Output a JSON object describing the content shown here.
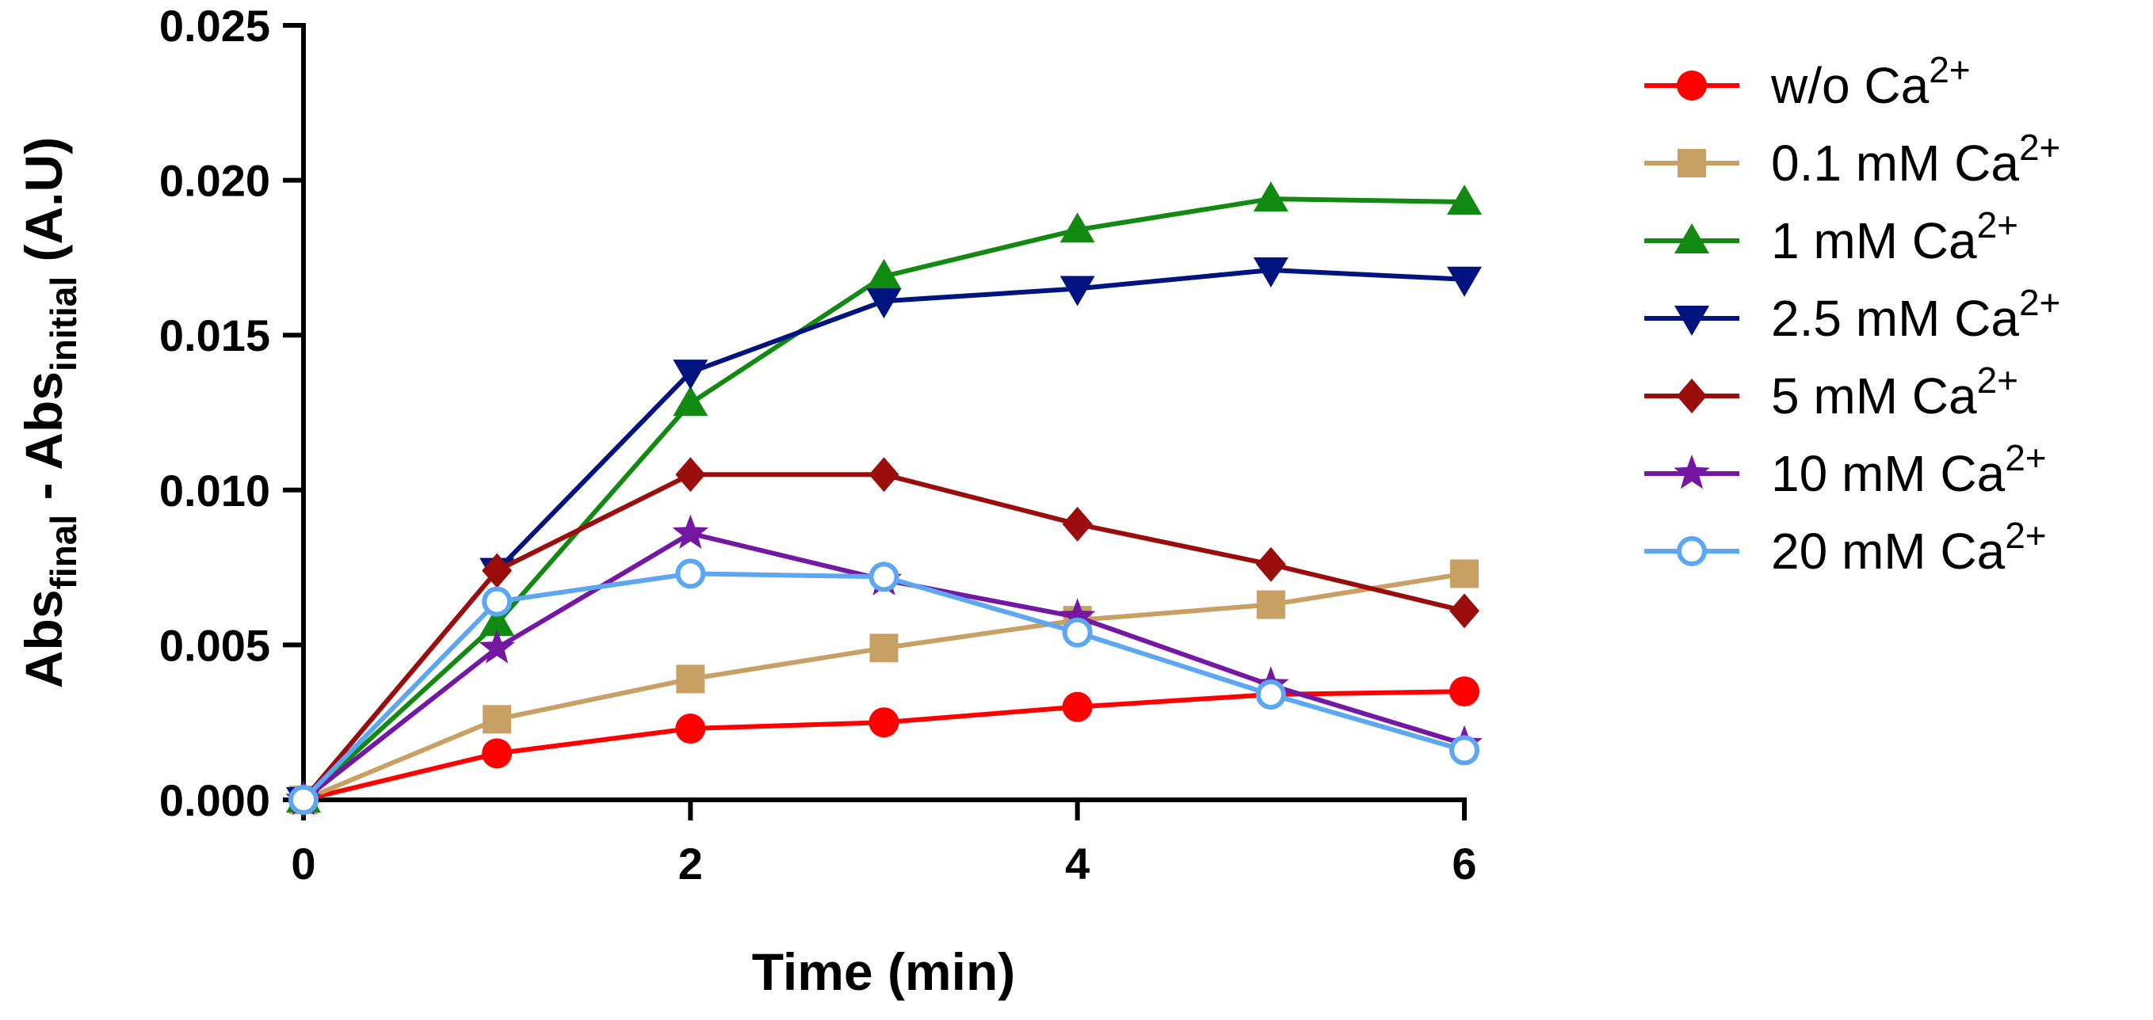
{
  "chart_data": {
    "type": "line",
    "title": "",
    "xlabel": "Time (min)",
    "ylabel": {
      "base1": "Abs",
      "sub1": "final",
      "sep": " - ",
      "base2": "Abs",
      "sub2": "initial",
      "unit": " (A.U)"
    },
    "xlim": [
      0,
      6
    ],
    "ylim": [
      0,
      0.025
    ],
    "xticks": [
      0,
      2,
      4,
      6
    ],
    "xtick_labels": [
      "0",
      "2",
      "4",
      "6"
    ],
    "yticks": [
      0,
      0.005,
      0.01,
      0.015,
      0.02,
      0.025
    ],
    "ytick_labels": [
      "0.000",
      "0.005",
      "0.010",
      "0.015",
      "0.020",
      "0.025"
    ],
    "grid": false,
    "legend_position": "right",
    "x": [
      0,
      1,
      2,
      3,
      4,
      5,
      6
    ],
    "series": [
      {
        "name": "w/o Ca",
        "label_main": "w/o Ca",
        "label_sup": "2+",
        "color": "#ff0000",
        "marker": "circle",
        "values": [
          0.0,
          0.0015,
          0.0023,
          0.0025,
          0.003,
          0.0034,
          0.0035
        ]
      },
      {
        "name": "0.1 mM Ca",
        "label_main": "0.1 mM Ca",
        "label_sup": "2+",
        "color": "#c8a063",
        "marker": "square",
        "values": [
          0.0,
          0.0026,
          0.0039,
          0.0049,
          0.0058,
          0.0063,
          0.0073
        ]
      },
      {
        "name": "1 mM Ca",
        "label_main": "1 mM Ca",
        "label_sup": "2+",
        "color": "#128a12",
        "marker": "triangle-up",
        "values": [
          0.0,
          0.0057,
          0.0128,
          0.0169,
          0.0184,
          0.0194,
          0.0193
        ]
      },
      {
        "name": "2.5 mM Ca",
        "label_main": "2.5 mM Ca",
        "label_sup": "2+",
        "color": "#00137f",
        "marker": "triangle-down",
        "values": [
          0.0,
          0.0074,
          0.0138,
          0.0161,
          0.0165,
          0.0171,
          0.0168
        ]
      },
      {
        "name": "5 mM Ca",
        "label_main": "5 mM Ca",
        "label_sup": "2+",
        "color": "#9b0d0d",
        "marker": "diamond",
        "values": [
          0.0,
          0.0074,
          0.0105,
          0.0105,
          0.0089,
          0.0076,
          0.0061
        ]
      },
      {
        "name": "10 mM Ca",
        "label_main": "10 mM Ca",
        "label_sup": "2+",
        "color": "#7417a3",
        "marker": "star",
        "values": [
          0.0,
          0.0049,
          0.0086,
          0.0071,
          0.0059,
          0.0037,
          0.0018
        ]
      },
      {
        "name": "20 mM Ca",
        "label_main": "20 mM Ca",
        "label_sup": "2+",
        "color": "#5ca6f2",
        "marker": "open-circle",
        "values": [
          0.0,
          0.0064,
          0.0073,
          0.0072,
          0.0054,
          0.0034,
          0.0016
        ]
      }
    ]
  }
}
